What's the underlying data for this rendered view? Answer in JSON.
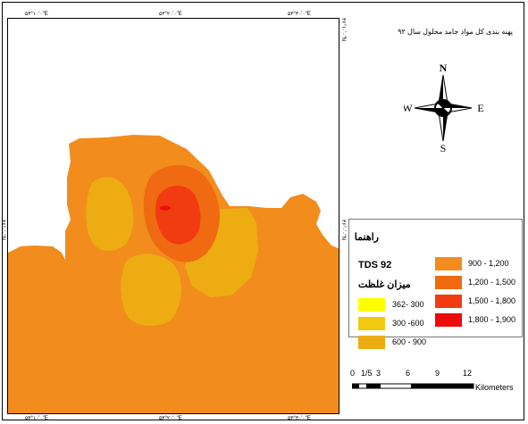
{
  "title": "پهنه بندی کل مواد جامد محلول سال ۹۲",
  "coords": {
    "top_left": "۵۳°۱۰'۰\"E",
    "top_mid": "۵۳°۲۰'۰\"E",
    "top_right": "۵۳°۳۰'۰\"E",
    "bottom_left": "۵۳°۱۰'۰\"E",
    "bottom_mid": "۵۳°۲۰'۰\"E",
    "bottom_right": "۵۳°۳۰'۰\"E",
    "left_mid": "۳۶°۰'۰\"N",
    "right_top": "۳۶°۱۰'۰\"N",
    "right_mid": "۳۶°۰'۰\"N"
  },
  "compass": {
    "north": "N",
    "south": "S",
    "east": "E",
    "west": "W"
  },
  "legend": {
    "title": "راهنما",
    "subtitle1": "TDS 92",
    "subtitle2": "میزان غلظت",
    "classes": [
      {
        "label": "362- 300",
        "color": "#ffff00"
      },
      {
        "label": "300 -600",
        "color": "#f2c811"
      },
      {
        "label": "600 - 900",
        "color": "#ecac12"
      },
      {
        "label": "900 - 1,200",
        "color": "#f28c1d"
      },
      {
        "label": "1,200 - 1,500",
        "color": "#f06a11"
      },
      {
        "label": "1,500 - 1,800",
        "color": "#f03c10"
      },
      {
        "label": "1,800 - 1,900",
        "color": "#ec0b0b"
      }
    ]
  },
  "scalebar": {
    "ticks": [
      "0",
      "1/5",
      "3",
      "6",
      "9",
      "12"
    ],
    "unit": "Kilometers"
  }
}
